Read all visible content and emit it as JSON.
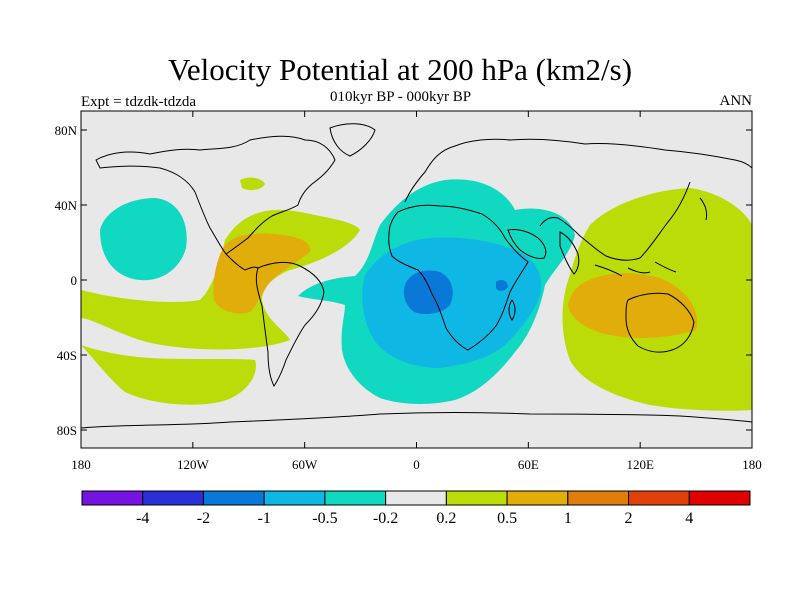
{
  "chart_data": {
    "type": "heatmap",
    "title": "Velocity Potential at 200 hPa (km2/s)",
    "subtitle": "010kyr BP - 000kyr BP",
    "left_label": "Expt = tdzdk-tdzda",
    "right_label": "ANN",
    "x_ticks": [
      "180",
      "120W",
      "60W",
      "0",
      "60E",
      "120E",
      "180"
    ],
    "y_ticks": [
      "80N",
      "40N",
      "0",
      "40S",
      "80S"
    ],
    "x_range": [
      -180,
      180
    ],
    "y_range": [
      -90,
      90
    ],
    "colorbar": {
      "levels": [
        "-4",
        "-2",
        "-1",
        "-0.5",
        "-0.2",
        "0.2",
        "0.5",
        "1",
        "2",
        "4"
      ],
      "colors": [
        "#7514e0",
        "#2a2fd6",
        "#0a78d6",
        "#0fb8e4",
        "#11d8c0",
        "#e8e8e8",
        "#bcdc0a",
        "#e0ad0a",
        "#e07c0a",
        "#e0400a",
        "#e00000"
      ]
    },
    "field_regions": [
      {
        "name": "africa-negative",
        "level": "-0.2"
      },
      {
        "name": "africa-core",
        "level": "-1"
      },
      {
        "name": "north-pacific",
        "level": "-0.2"
      },
      {
        "name": "central-america",
        "level": "0.5"
      },
      {
        "name": "west-pacific",
        "level": "0.5"
      },
      {
        "name": "maritime-continent",
        "level": "0.2"
      }
    ]
  }
}
